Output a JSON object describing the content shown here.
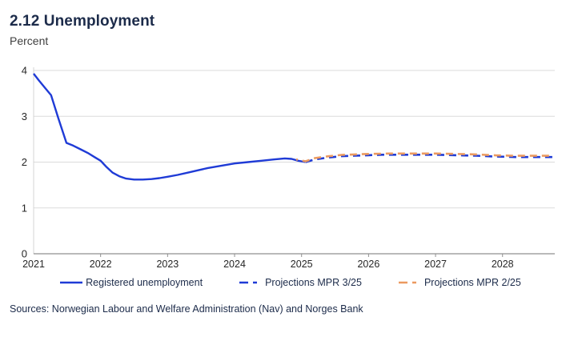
{
  "header": {
    "title": "2.12 Unemployment",
    "subtitle": "Percent"
  },
  "footer": {
    "sources": "Sources: Norwegian Labour and Welfare Administration (Nav) and Norges Bank"
  },
  "colors": {
    "line_blue": "#1F3BD6",
    "line_orange": "#EB9A60",
    "text_navy": "#1C2B4A",
    "subtitle_gray": "#3F3F3F",
    "tick_text": "#262626",
    "gridline": "#DBDBDB",
    "axis_line": "#8F8F8F",
    "y_axis_line": "#D5D5D5"
  },
  "chart_data": {
    "type": "line",
    "title": "2.12 Unemployment",
    "ylabel": "Percent",
    "xlabel": "",
    "grid": "horizontal",
    "legend_position": "bottom",
    "xlim": [
      2021,
      2028.78
    ],
    "ylim": [
      0,
      4
    ],
    "x_ticks": [
      2021,
      2022,
      2023,
      2024,
      2025,
      2026,
      2027,
      2028
    ],
    "y_ticks": [
      0,
      1,
      2,
      3,
      4
    ],
    "series": [
      {
        "name": "Registered unemployment",
        "style": "solid",
        "color": "#1F3BD6",
        "points": [
          [
            2021.0,
            3.93
          ],
          [
            2021.08,
            3.78
          ],
          [
            2021.17,
            3.62
          ],
          [
            2021.26,
            3.46
          ],
          [
            2021.37,
            2.95
          ],
          [
            2021.49,
            2.42
          ],
          [
            2021.59,
            2.36
          ],
          [
            2021.7,
            2.28
          ],
          [
            2021.82,
            2.19
          ],
          [
            2021.92,
            2.1
          ],
          [
            2022.0,
            2.03
          ],
          [
            2022.09,
            1.89
          ],
          [
            2022.18,
            1.77
          ],
          [
            2022.28,
            1.69
          ],
          [
            2022.38,
            1.64
          ],
          [
            2022.5,
            1.62
          ],
          [
            2022.63,
            1.62
          ],
          [
            2022.76,
            1.63
          ],
          [
            2022.88,
            1.65
          ],
          [
            2023.0,
            1.68
          ],
          [
            2023.15,
            1.72
          ],
          [
            2023.3,
            1.77
          ],
          [
            2023.45,
            1.82
          ],
          [
            2023.6,
            1.87
          ],
          [
            2023.8,
            1.92
          ],
          [
            2024.0,
            1.97
          ],
          [
            2024.2,
            2.0
          ],
          [
            2024.4,
            2.03
          ],
          [
            2024.6,
            2.06
          ],
          [
            2024.75,
            2.08
          ],
          [
            2024.85,
            2.07
          ],
          [
            2024.95,
            2.03
          ],
          [
            2025.06,
            2.0
          ]
        ]
      },
      {
        "name": "Projections MPR 3/25",
        "style": "dashed",
        "color": "#1F3BD6",
        "points": [
          [
            2025.06,
            2.0
          ],
          [
            2025.2,
            2.06
          ],
          [
            2025.4,
            2.1
          ],
          [
            2025.6,
            2.13
          ],
          [
            2025.8,
            2.14
          ],
          [
            2026.0,
            2.15
          ],
          [
            2026.2,
            2.16
          ],
          [
            2026.5,
            2.16
          ],
          [
            2026.8,
            2.16
          ],
          [
            2027.0,
            2.16
          ],
          [
            2027.3,
            2.15
          ],
          [
            2027.6,
            2.14
          ],
          [
            2027.9,
            2.12
          ],
          [
            2028.2,
            2.11
          ],
          [
            2028.5,
            2.11
          ],
          [
            2028.76,
            2.11
          ]
        ]
      },
      {
        "name": "Projections MPR 2/25",
        "style": "dashed",
        "color": "#EB9A60",
        "points": [
          [
            2024.92,
            2.04
          ],
          [
            2025.06,
            2.0
          ],
          [
            2025.2,
            2.07
          ],
          [
            2025.4,
            2.11
          ],
          [
            2025.6,
            2.14
          ],
          [
            2025.8,
            2.15
          ],
          [
            2026.0,
            2.16
          ],
          [
            2026.3,
            2.17
          ],
          [
            2026.6,
            2.17
          ],
          [
            2027.0,
            2.17
          ],
          [
            2027.3,
            2.16
          ],
          [
            2027.6,
            2.15
          ],
          [
            2027.9,
            2.13
          ],
          [
            2028.2,
            2.12
          ],
          [
            2028.5,
            2.12
          ],
          [
            2028.76,
            2.12
          ]
        ]
      }
    ]
  }
}
